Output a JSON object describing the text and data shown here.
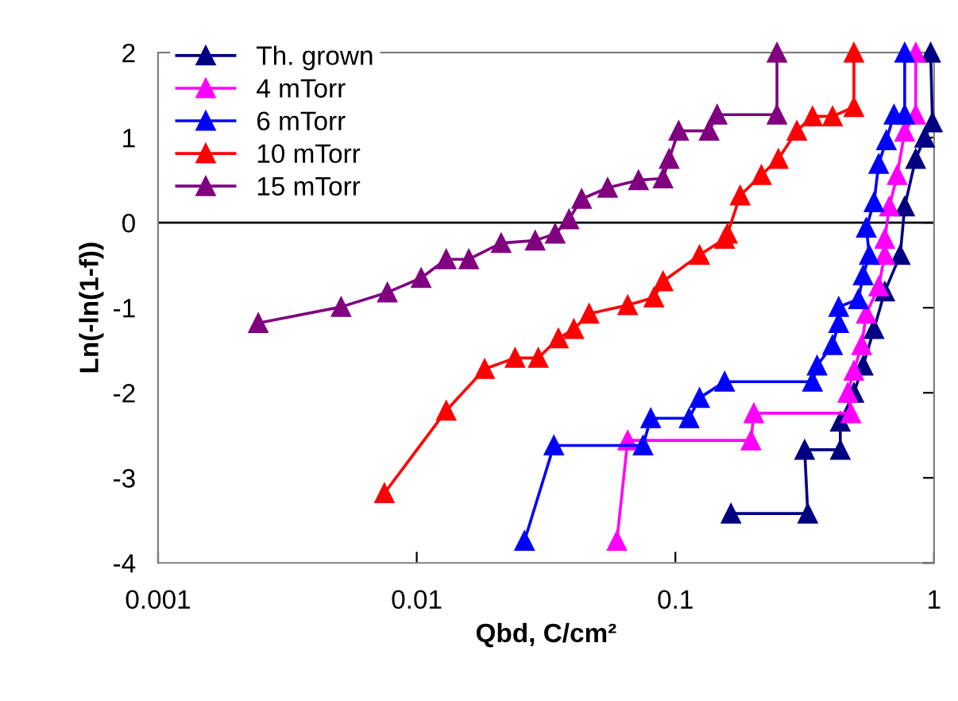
{
  "chart_data": {
    "type": "line",
    "xlabel": "Qbd, C/cm²",
    "ylabel": "Ln(-ln(1-f))",
    "log": "x",
    "xlim": [
      0.001,
      1
    ],
    "xticks": [
      0.001,
      0.01,
      0.1,
      1
    ],
    "ylim": [
      -4,
      2
    ],
    "yticks": [
      -4,
      -3,
      -2,
      -1,
      0,
      1,
      2
    ],
    "grid": false,
    "legend": "top left",
    "marker": "triangle",
    "line_style": "solid",
    "ref_lines": [
      {
        "axis": "y",
        "value": 0,
        "color": "#000000"
      }
    ],
    "series": [
      {
        "name": "Th. grown",
        "color": "#000080",
        "x": [
          0.164,
          0.325,
          0.316,
          0.434,
          0.434,
          0.49,
          0.532,
          0.586,
          0.645,
          0.74,
          0.77,
          0.849,
          0.92,
          0.986,
          0.97
        ],
        "values": [
          -3.42,
          -3.42,
          -2.67,
          -2.67,
          -2.34,
          -2.0,
          -1.68,
          -1.25,
          -0.81,
          -0.38,
          0.19,
          0.75,
          1.0,
          1.18,
          2
        ]
      },
      {
        "name": "4 mTorr",
        "color": "#ff00ff",
        "x": [
          0.0594,
          0.0654,
          0.196,
          0.201,
          0.477,
          0.464,
          0.49,
          0.525,
          0.547,
          0.611,
          0.645,
          0.645,
          0.672,
          0.72,
          0.77,
          0.849,
          0.85
        ],
        "values": [
          -3.74,
          -2.56,
          -2.56,
          -2.24,
          -2.24,
          -2.0,
          -1.74,
          -1.44,
          -1.07,
          -0.75,
          -0.38,
          -0.19,
          0.19,
          0.56,
          1.07,
          1.27,
          2
        ]
      },
      {
        "name": "6 mTorr",
        "color": "#0000ff",
        "x": [
          0.0261,
          0.0339,
          0.075,
          0.0803,
          0.113,
          0.124,
          0.155,
          0.339,
          0.353,
          0.405,
          0.428,
          0.428,
          0.51,
          0.532,
          0.562,
          0.547,
          0.586,
          0.611,
          0.654,
          0.7,
          0.77,
          0.77
        ],
        "values": [
          -3.74,
          -2.62,
          -2.62,
          -2.3,
          -2.3,
          -2.06,
          -1.87,
          -1.87,
          -1.68,
          -1.44,
          -1.18,
          -0.99,
          -0.9,
          -0.62,
          -0.38,
          -0.06,
          0.24,
          0.69,
          0.97,
          1.27,
          1.27,
          2
        ]
      },
      {
        "name": "10 mTorr",
        "color": "#ff0000",
        "x": [
          0.0075,
          0.013,
          0.0183,
          0.024,
          0.0295,
          0.0353,
          0.0405,
          0.0464,
          0.0654,
          0.0826,
          0.0896,
          0.124,
          0.155,
          0.159,
          0.178,
          0.215,
          0.25,
          0.295,
          0.339,
          0.405,
          0.49,
          0.49
        ],
        "values": [
          -3.18,
          -2.21,
          -1.72,
          -1.59,
          -1.59,
          -1.36,
          -1.25,
          -1.07,
          -0.97,
          -0.88,
          -0.69,
          -0.38,
          -0.19,
          -0.13,
          0.32,
          0.56,
          0.75,
          1.08,
          1.25,
          1.25,
          1.36,
          2
        ]
      },
      {
        "name": "15 mTorr",
        "color": "#800080",
        "x": [
          0.00244,
          0.0051,
          0.0077,
          0.0104,
          0.013,
          0.0159,
          0.0212,
          0.0287,
          0.0343,
          0.0388,
          0.0434,
          0.0547,
          0.072,
          0.0896,
          0.0946,
          0.103,
          0.135,
          0.145,
          0.247,
          0.247
        ],
        "values": [
          -1.18,
          -0.99,
          -0.82,
          -0.65,
          -0.43,
          -0.43,
          -0.24,
          -0.21,
          -0.13,
          0.04,
          0.28,
          0.41,
          0.5,
          0.52,
          0.75,
          1.08,
          1.08,
          1.27,
          1.27,
          2
        ]
      }
    ]
  }
}
